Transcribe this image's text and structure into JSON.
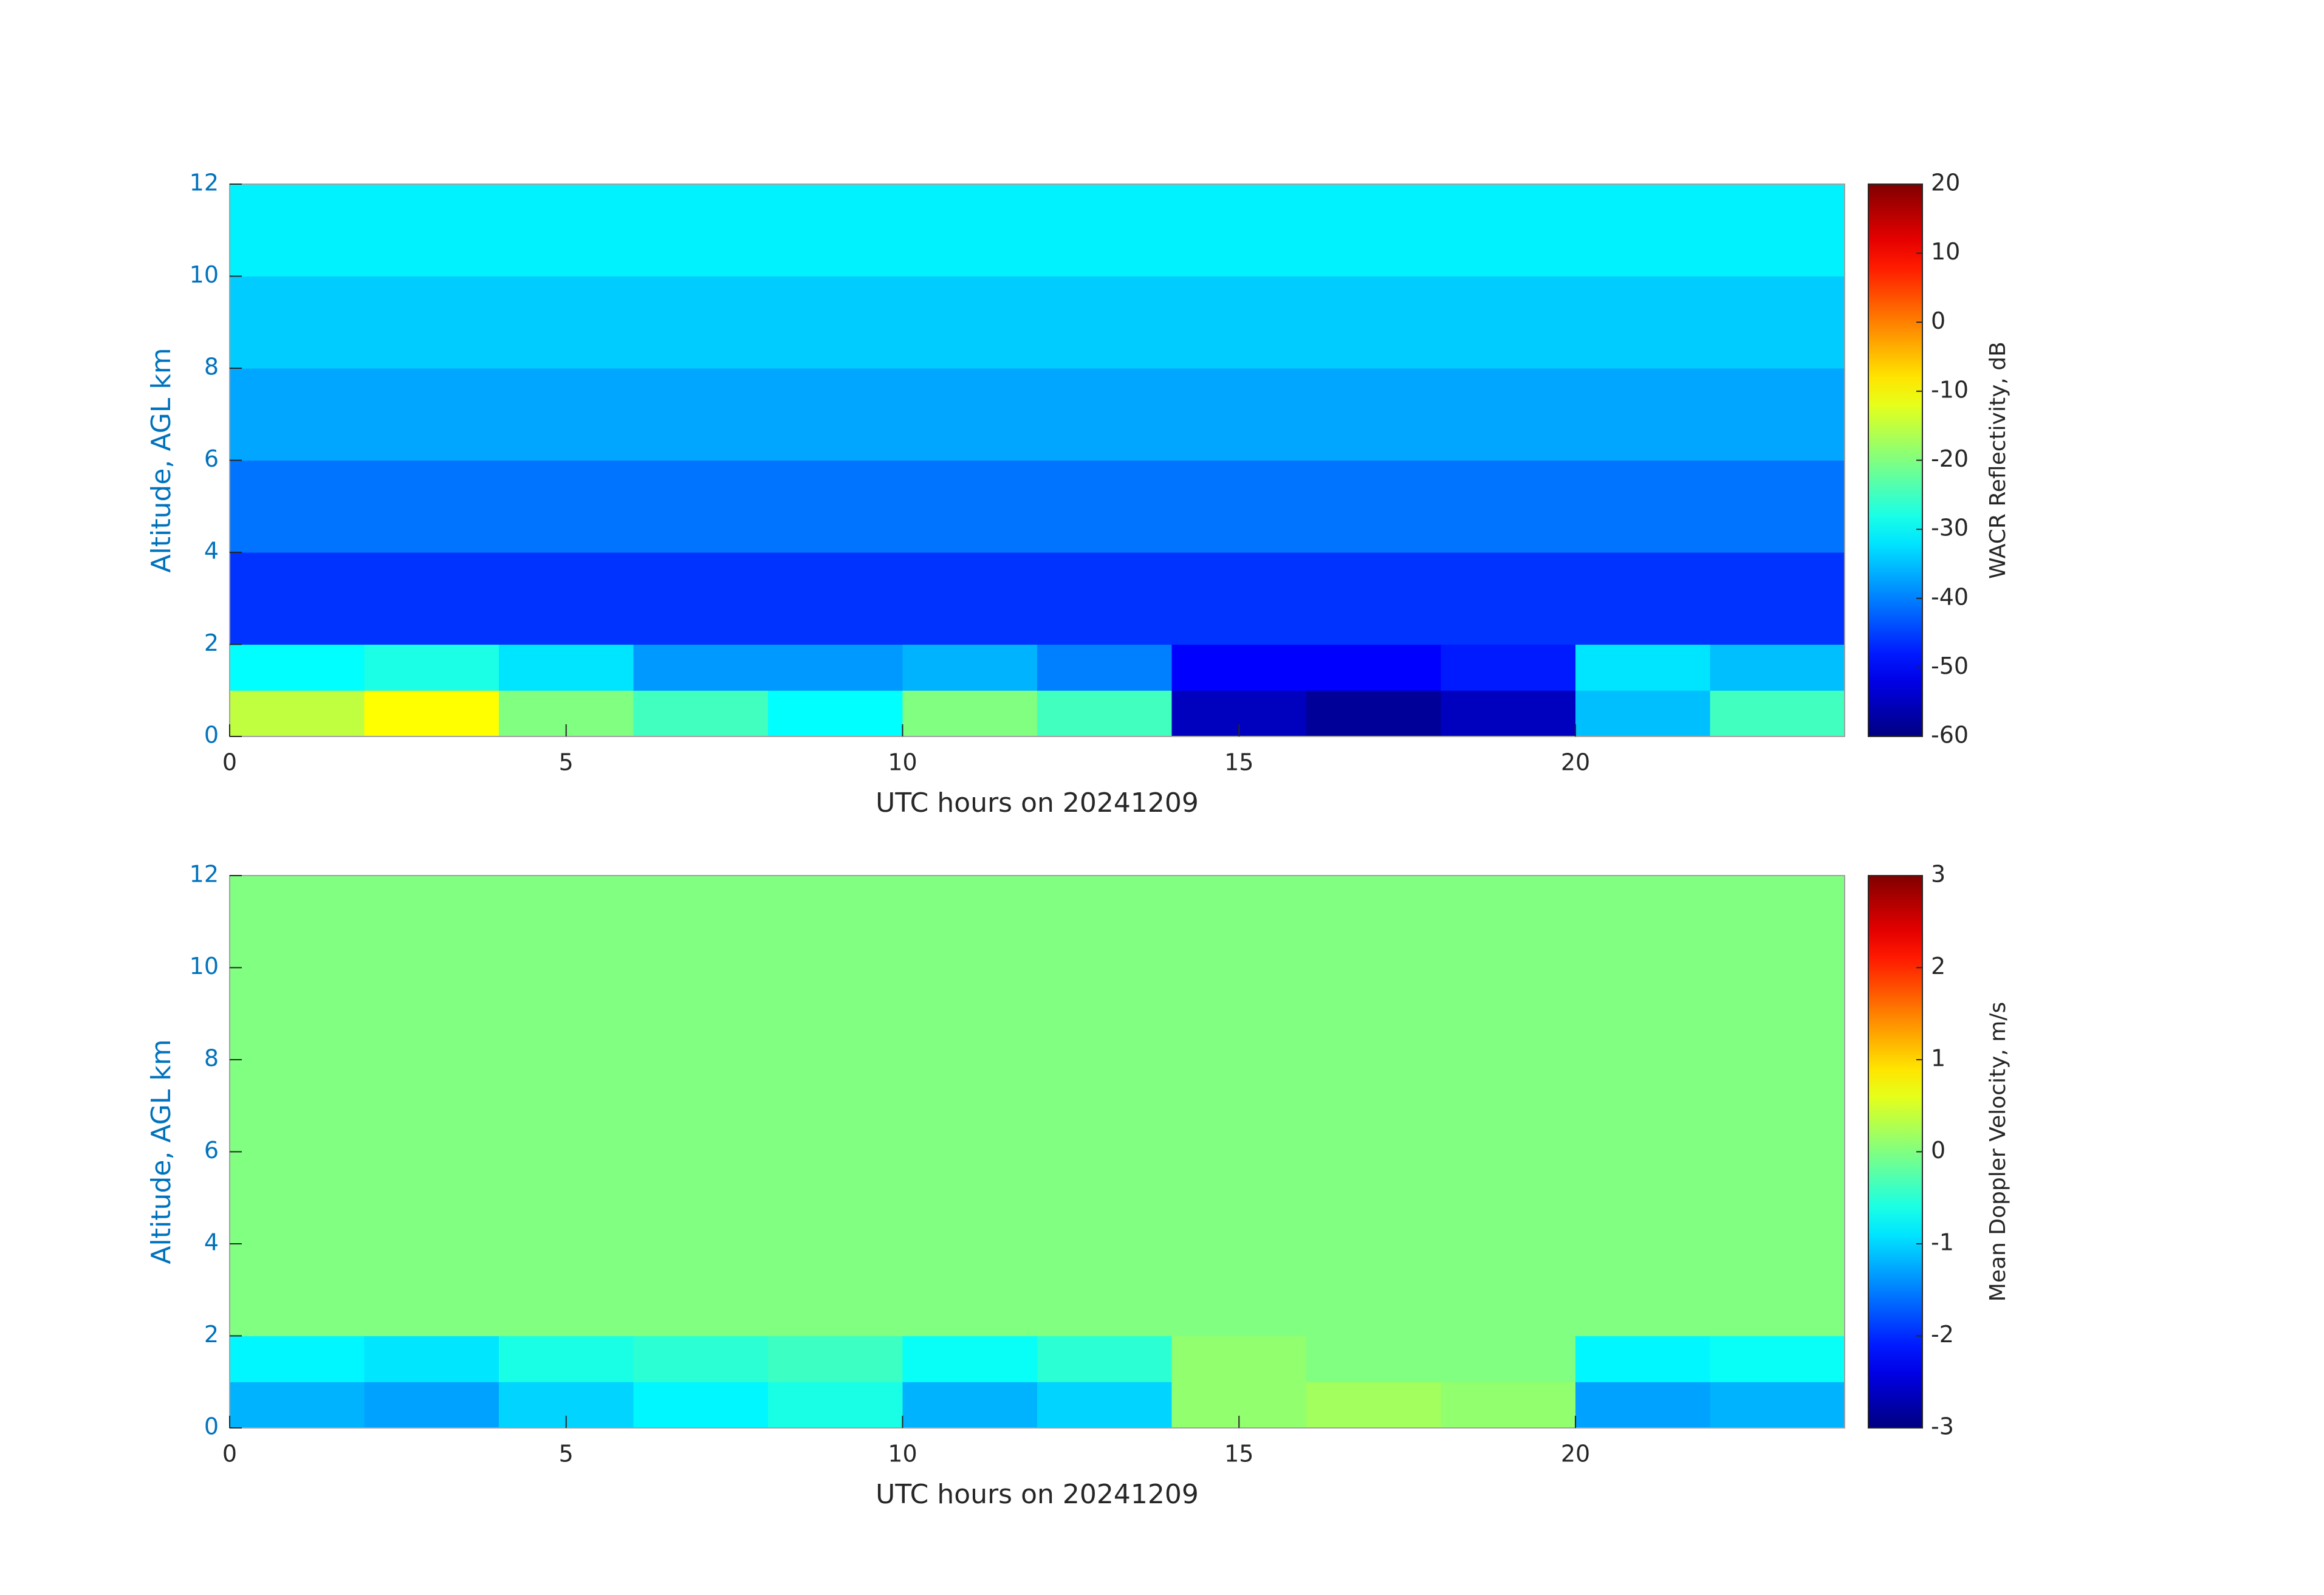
{
  "chart_data": [
    {
      "type": "heatmap",
      "xlabel": "UTC hours on 20241209",
      "ylabel": "Altitude, AGL km",
      "colorbar_label": "WACR Reflectivity, dB",
      "colormap": "jet",
      "x_bins": [
        0,
        2,
        4,
        6,
        8,
        10,
        12,
        14,
        16,
        18,
        20,
        22,
        24
      ],
      "y_bins": [
        0,
        1,
        2,
        4,
        6,
        8,
        10,
        12
      ],
      "z": [
        [
          -15,
          -10,
          -20,
          -25,
          -30,
          -20,
          -25,
          -55,
          -58,
          -55,
          -35,
          -25
        ],
        [
          -30,
          -28,
          -32,
          -38,
          -38,
          -36,
          -40,
          -50,
          -50,
          -48,
          -32,
          -35
        ],
        [
          -46,
          -46,
          -46,
          -46,
          -46,
          -46,
          -46,
          -46,
          -46,
          -46,
          -46,
          -46
        ],
        [
          -41,
          -41,
          -41,
          -41,
          -41,
          -41,
          -41,
          -41,
          -41,
          -41,
          -41,
          -41
        ],
        [
          -37,
          -37,
          -37,
          -37,
          -37,
          -37,
          -37,
          -37,
          -37,
          -37,
          -37,
          -37
        ],
        [
          -34,
          -34,
          -34,
          -34,
          -34,
          -34,
          -34,
          -34,
          -34,
          -34,
          -34,
          -34
        ],
        [
          -31,
          -31,
          -31,
          -31,
          -31,
          -31,
          -31,
          -31,
          -31,
          -31,
          -31,
          -31
        ]
      ],
      "xlim": [
        0,
        24
      ],
      "xticks": [
        0,
        5,
        10,
        15,
        20
      ],
      "ylim": [
        0,
        12
      ],
      "yticks": [
        0,
        2,
        4,
        6,
        8,
        10,
        12
      ],
      "clim": [
        -60,
        20
      ],
      "cticks": [
        -60,
        -50,
        -40,
        -30,
        -20,
        -10,
        0,
        10,
        20
      ]
    },
    {
      "type": "heatmap",
      "xlabel": "UTC hours on 20241209",
      "ylabel": "Altitude, AGL km",
      "colorbar_label": "Mean Doppler Velocity, m/s",
      "colormap": "jet",
      "x_bins": [
        0,
        2,
        4,
        6,
        8,
        10,
        12,
        14,
        16,
        18,
        20,
        22,
        24
      ],
      "y_bins": [
        0,
        1,
        2,
        4,
        6,
        8,
        10,
        12
      ],
      "z": [
        [
          -1.2,
          -1.3,
          -1.0,
          -0.8,
          -0.6,
          -1.2,
          -1.0,
          0.1,
          0.2,
          0.1,
          -1.3,
          -1.2
        ],
        [
          -0.8,
          -0.9,
          -0.6,
          -0.5,
          -0.4,
          -0.7,
          -0.5,
          0.1,
          0,
          0,
          -0.8,
          -0.7
        ],
        [
          0,
          0,
          0,
          0,
          0,
          0,
          0,
          0,
          0,
          0,
          0,
          0
        ],
        [
          0,
          0,
          0,
          0,
          0,
          0,
          0,
          0,
          0,
          0,
          0,
          0
        ],
        [
          0,
          0,
          0,
          0,
          0,
          0,
          0,
          0,
          0,
          0,
          0,
          0
        ],
        [
          0,
          0,
          0,
          0,
          0,
          0,
          0,
          0,
          0,
          0,
          0,
          0
        ],
        [
          0,
          0,
          0,
          0,
          0,
          0,
          0,
          0,
          0,
          0,
          0,
          0
        ]
      ],
      "xlim": [
        0,
        24
      ],
      "xticks": [
        0,
        5,
        10,
        15,
        20
      ],
      "ylim": [
        0,
        12
      ],
      "yticks": [
        0,
        2,
        4,
        6,
        8,
        10,
        12
      ],
      "clim": [
        -3,
        3
      ],
      "cticks": [
        -3,
        -2,
        -1,
        0,
        1,
        2,
        3
      ]
    }
  ]
}
